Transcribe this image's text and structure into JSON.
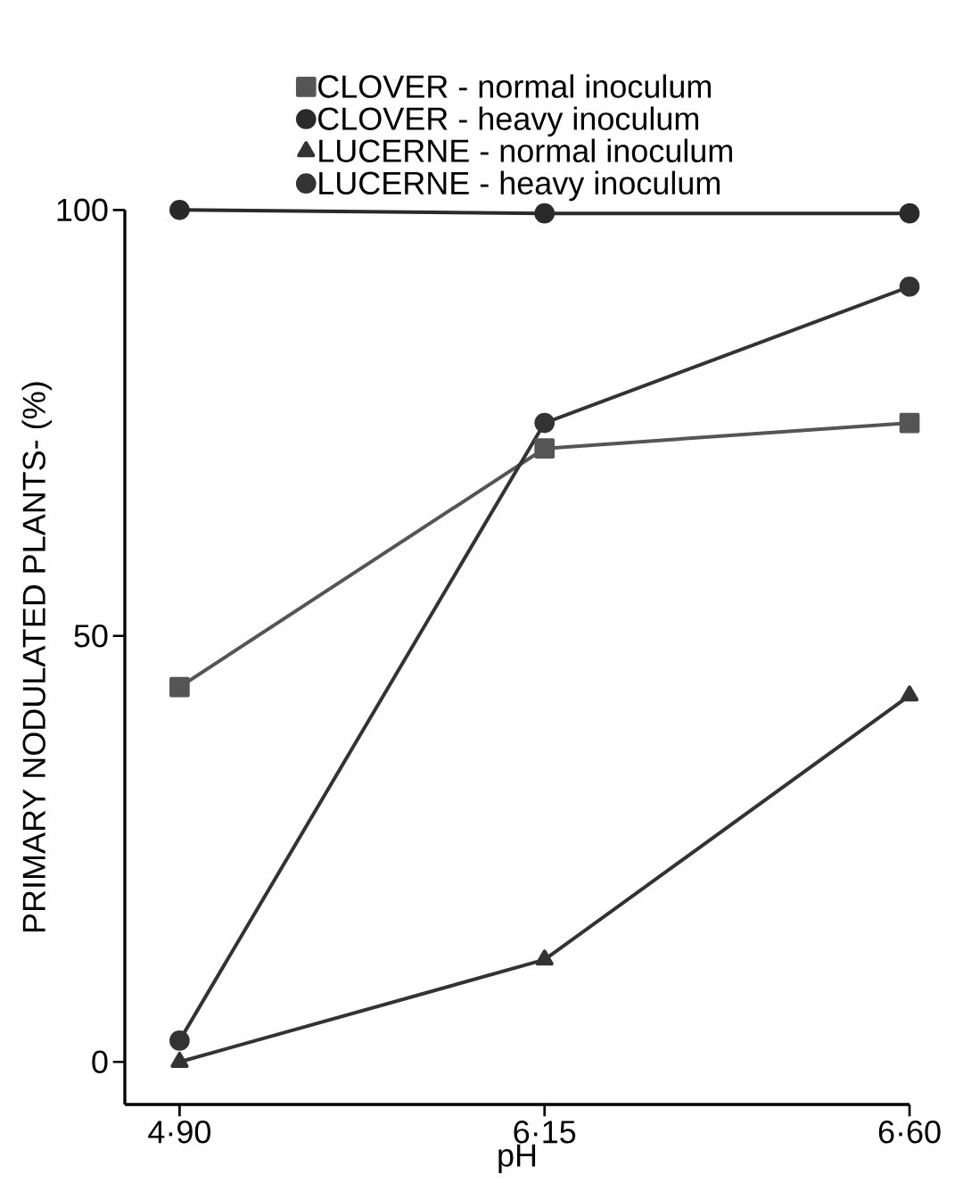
{
  "chart_data": {
    "type": "line",
    "xlabel": "pH",
    "ylabel": "PRIMARY    NODULATED    PLANTS- (%)",
    "categories": [
      "4·90",
      "6·15",
      "6·60"
    ],
    "ylim": [
      -5,
      100
    ],
    "yticks": [
      0,
      50,
      100
    ],
    "legend": "top",
    "grid": false,
    "line_style": "solid",
    "series": [
      {
        "name": "CLOVER  -  normal  inoculum",
        "color": "#555555",
        "marker": "square",
        "values": [
          44,
          72,
          75
        ]
      },
      {
        "name": "CLOVER  -  heavy  inoculum",
        "color": "#2a2a2a",
        "marker": "circle",
        "values": [
          100,
          99.6,
          99.6
        ]
      },
      {
        "name": "LUCERNE -  normal  inoculum",
        "color": "#333333",
        "marker": "triangle",
        "values": [
          0,
          12,
          43
        ]
      },
      {
        "name": "LUCERNE -  heavy  inoculum",
        "color": "#333333",
        "marker": "circle",
        "values": [
          2.5,
          75,
          91
        ]
      }
    ]
  }
}
